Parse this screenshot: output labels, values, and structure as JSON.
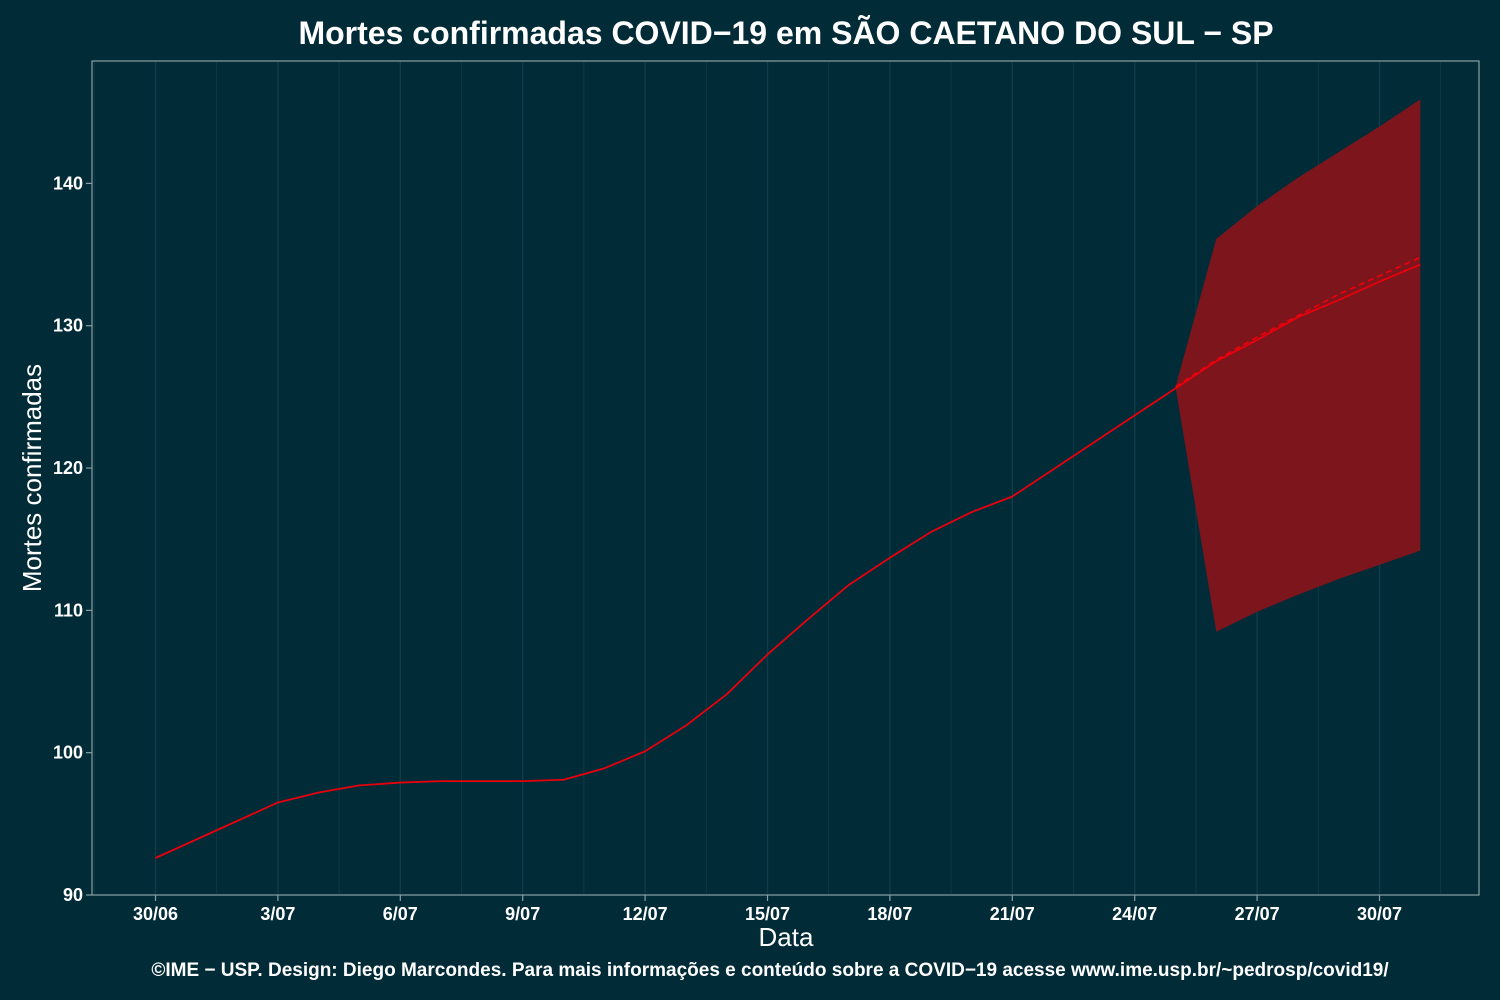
{
  "chart_data": {
    "type": "line",
    "title": "Mortes confirmadas COVID−19 em SÃO CAETANO DO SUL − SP",
    "xlabel": "Data",
    "ylabel": "Mortes confirmadas",
    "caption": "©IME − USP. Design: Diego Marcondes. Para mais informações e conteúdo sobre a COVID−19 acesse www.ime.usp.br/~pedrosp/covid19/",
    "x_tick_labels": [
      "30/06",
      "3/07",
      "6/07",
      "9/07",
      "12/07",
      "15/07",
      "18/07",
      "21/07",
      "24/07",
      "27/07",
      "30/07"
    ],
    "y_ticks": [
      90,
      100,
      110,
      120,
      130,
      140
    ],
    "ylim": [
      90,
      148.6
    ],
    "grid": "vertical",
    "series": [
      {
        "style": "solid",
        "x": [
          "2020-06-30",
          "2020-07-01",
          "2020-07-02",
          "2020-07-03",
          "2020-07-04",
          "2020-07-05",
          "2020-07-06",
          "2020-07-07",
          "2020-07-08",
          "2020-07-09",
          "2020-07-10",
          "2020-07-11",
          "2020-07-12",
          "2020-07-13",
          "2020-07-14",
          "2020-07-15",
          "2020-07-16",
          "2020-07-17",
          "2020-07-18",
          "2020-07-19",
          "2020-07-20",
          "2020-07-21",
          "2020-07-22",
          "2020-07-23",
          "2020-07-24",
          "2020-07-25",
          "2020-07-26",
          "2020-07-27",
          "2020-07-28",
          "2020-07-29",
          "2020-07-30",
          "2020-07-31"
        ],
        "values": [
          92.6,
          93.9,
          95.2,
          96.5,
          97.2,
          97.7,
          97.9,
          98.0,
          98.0,
          98.0,
          98.1,
          98.9,
          100.1,
          101.9,
          104.1,
          106.9,
          109.4,
          111.8,
          113.7,
          115.5,
          116.9,
          118.0,
          119.9,
          121.8,
          123.7,
          125.6,
          127.5,
          129.0,
          130.6,
          131.8,
          133.1,
          134.3
        ]
      },
      {
        "style": "dashed",
        "x": [
          "2020-07-25",
          "2020-07-26",
          "2020-07-27",
          "2020-07-28",
          "2020-07-29",
          "2020-07-30",
          "2020-07-31"
        ],
        "values": [
          125.7,
          127.6,
          129.2,
          130.7,
          132.2,
          133.5,
          134.8
        ]
      }
    ],
    "band": {
      "x": [
        "2020-07-25",
        "2020-07-26",
        "2020-07-27",
        "2020-07-28",
        "2020-07-29",
        "2020-07-30",
        "2020-07-31"
      ],
      "lower": [
        125.7,
        108.5,
        109.9,
        111.1,
        112.2,
        113.2,
        114.2
      ],
      "upper": [
        125.7,
        136.1,
        138.4,
        140.4,
        142.2,
        144.0,
        145.9
      ]
    },
    "colors": {
      "background": "#022b38",
      "line": "#e8000d",
      "band": "#7d151c",
      "grid": "#0f3c48",
      "frame": "#8a9fa3"
    }
  }
}
